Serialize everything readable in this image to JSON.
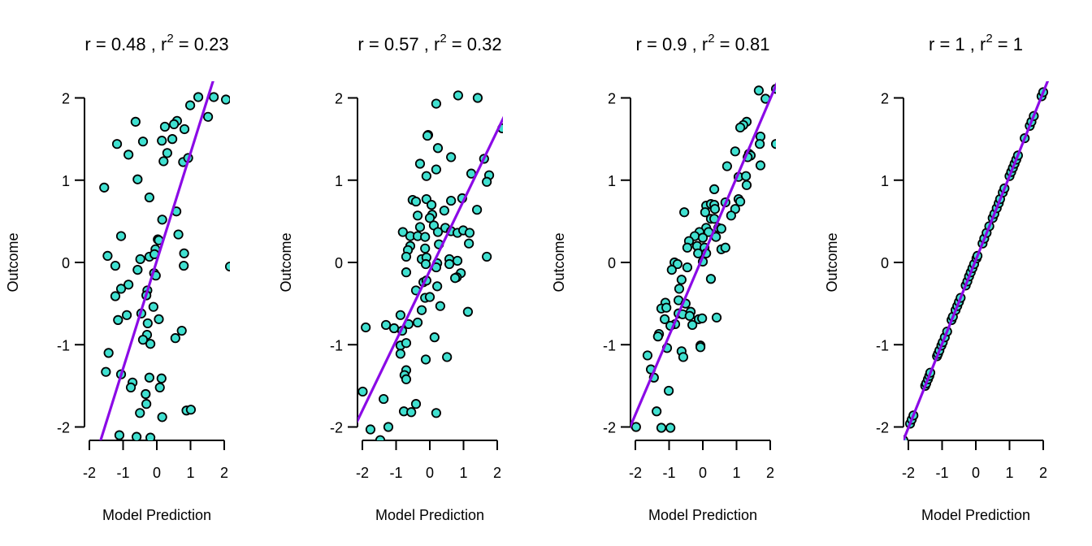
{
  "figure": {
    "point_fill": "#40E0D0",
    "point_stroke": "#000000",
    "line_color": "#8B0AE6"
  },
  "chart_data": [
    {
      "type": "scatter",
      "title": "r = 0.48 , r2 = 0.23",
      "title_parts": {
        "r_label": "r = ",
        "r": "0.48",
        "sep": " , r",
        "sup": "2",
        "eq": " = ",
        "r2": "0.23"
      },
      "xlabel": "Model Prediction",
      "ylabel": "Outcome",
      "xlim": [
        -2.2,
        2.15
      ],
      "ylim": [
        -2.2,
        2.2
      ],
      "xticks": [
        -2,
        -1,
        0,
        1,
        2
      ],
      "xtick_labels": [
        "-2",
        "-1",
        "0",
        "1",
        "2"
      ],
      "yticks": [
        -2,
        -1,
        0,
        1,
        2
      ],
      "ytick_labels": [
        "-2",
        "-1",
        "0",
        "1",
        "2"
      ],
      "grid": false,
      "fit_line": {
        "slope": 1.31,
        "intercept": 0.02
      },
      "points": [
        [
          2.05,
          1.98
        ],
        [
          1.69,
          2.01
        ],
        [
          1.23,
          2.01
        ],
        [
          0.99,
          1.91
        ],
        [
          1.52,
          1.77
        ],
        [
          -0.63,
          1.71
        ],
        [
          0.6,
          1.72
        ],
        [
          0.51,
          1.68
        ],
        [
          0.24,
          1.65
        ],
        [
          0.82,
          1.62
        ],
        [
          -1.18,
          1.44
        ],
        [
          -0.41,
          1.47
        ],
        [
          0.15,
          1.48
        ],
        [
          0.46,
          1.5
        ],
        [
          -0.84,
          1.31
        ],
        [
          0.31,
          1.33
        ],
        [
          0.2,
          1.23
        ],
        [
          0.78,
          1.22
        ],
        [
          0.93,
          1.27
        ],
        [
          -0.57,
          1.01
        ],
        [
          -1.56,
          0.91
        ],
        [
          -0.22,
          0.79
        ],
        [
          0.58,
          0.62
        ],
        [
          0.16,
          0.52
        ],
        [
          -1.06,
          0.32
        ],
        [
          0.64,
          0.34
        ],
        [
          0.03,
          0.28
        ],
        [
          0.06,
          0.27
        ],
        [
          -0.04,
          0.16
        ],
        [
          -1.46,
          0.08
        ],
        [
          -0.22,
          0.07
        ],
        [
          -0.49,
          0.04
        ],
        [
          -0.07,
          0.1
        ],
        [
          0.81,
          0.11
        ],
        [
          -1.23,
          -0.04
        ],
        [
          0.8,
          -0.04
        ],
        [
          -0.57,
          -0.09
        ],
        [
          -0.08,
          -0.13
        ],
        [
          -0.03,
          -0.16
        ],
        [
          2.17,
          -0.05
        ],
        [
          -0.84,
          -0.27
        ],
        [
          -1.06,
          -0.32
        ],
        [
          -1.23,
          -0.41
        ],
        [
          -0.28,
          -0.34
        ],
        [
          -0.31,
          -0.4
        ],
        [
          -0.1,
          -0.54
        ],
        [
          -0.89,
          -0.64
        ],
        [
          -1.15,
          -0.7
        ],
        [
          -0.46,
          -0.62
        ],
        [
          0.06,
          -0.69
        ],
        [
          -0.27,
          -0.74
        ],
        [
          -0.29,
          -0.88
        ],
        [
          -0.41,
          -0.94
        ],
        [
          -0.19,
          -0.99
        ],
        [
          0.74,
          -0.83
        ],
        [
          0.55,
          -0.92
        ],
        [
          -1.43,
          -1.1
        ],
        [
          -1.51,
          -1.33
        ],
        [
          -1.06,
          -1.36
        ],
        [
          -0.22,
          -1.4
        ],
        [
          0.14,
          -1.41
        ],
        [
          -0.72,
          -1.46
        ],
        [
          -0.77,
          -1.52
        ],
        [
          0.09,
          -1.52
        ],
        [
          -0.33,
          -1.6
        ],
        [
          -0.31,
          -1.72
        ],
        [
          -0.5,
          -1.83
        ],
        [
          0.16,
          -1.88
        ],
        [
          0.88,
          -1.8
        ],
        [
          1.01,
          -1.79
        ],
        [
          -1.11,
          -2.1
        ],
        [
          -0.6,
          -2.12
        ],
        [
          -0.19,
          -2.13
        ]
      ]
    },
    {
      "type": "scatter",
      "title": "r = 0.57 , r2 = 0.32",
      "title_parts": {
        "r_label": "r = ",
        "r": "0.57",
        "sep": " , r",
        "sup": "2",
        "eq": " = ",
        "r2": "0.32"
      },
      "xlabel": "Model Prediction",
      "ylabel": "Outcome",
      "xlim": [
        -2.2,
        2.15
      ],
      "ylim": [
        -2.2,
        2.2
      ],
      "xticks": [
        -2,
        -1,
        0,
        1,
        2
      ],
      "xtick_labels": [
        "-2",
        "-1",
        "0",
        "1",
        "2"
      ],
      "yticks": [
        -2,
        -1,
        0,
        1,
        2
      ],
      "ytick_labels": [
        "-2",
        "-1",
        "0",
        "1",
        "2"
      ],
      "grid": false,
      "fit_line": {
        "slope": 0.85,
        "intercept": -0.1
      },
      "points": [
        [
          0.84,
          2.03
        ],
        [
          1.42,
          2.0
        ],
        [
          0.19,
          1.93
        ],
        [
          -0.05,
          1.55
        ],
        [
          -0.07,
          1.54
        ],
        [
          0.24,
          1.39
        ],
        [
          0.63,
          1.28
        ],
        [
          1.61,
          1.26
        ],
        [
          -0.29,
          1.2
        ],
        [
          0.19,
          1.13
        ],
        [
          -0.1,
          1.05
        ],
        [
          1.23,
          1.08
        ],
        [
          1.76,
          1.06
        ],
        [
          1.69,
          0.98
        ],
        [
          -0.51,
          0.76
        ],
        [
          -0.41,
          0.74
        ],
        [
          -0.1,
          0.77
        ],
        [
          0.05,
          0.7
        ],
        [
          0.63,
          0.75
        ],
        [
          0.96,
          0.78
        ],
        [
          0.43,
          0.63
        ],
        [
          1.4,
          0.64
        ],
        [
          -0.36,
          0.57
        ],
        [
          0.07,
          0.58
        ],
        [
          0.0,
          0.54
        ],
        [
          0.12,
          0.45
        ],
        [
          -0.29,
          0.43
        ],
        [
          0.46,
          0.42
        ],
        [
          0.63,
          0.38
        ],
        [
          0.24,
          0.37
        ],
        [
          0.82,
          0.36
        ],
        [
          0.99,
          0.39
        ],
        [
          1.18,
          0.36
        ],
        [
          -0.8,
          0.37
        ],
        [
          -0.58,
          0.32
        ],
        [
          -0.36,
          0.32
        ],
        [
          -0.14,
          0.31
        ],
        [
          0.27,
          0.22
        ],
        [
          1.16,
          0.23
        ],
        [
          -0.58,
          0.2
        ],
        [
          -0.65,
          0.15
        ],
        [
          -0.14,
          0.17
        ],
        [
          -0.7,
          0.07
        ],
        [
          1.69,
          0.07
        ],
        [
          -0.24,
          0.04
        ],
        [
          -0.1,
          0.06
        ],
        [
          0.58,
          0.04
        ],
        [
          0.82,
          0.02
        ],
        [
          -0.12,
          -0.02
        ],
        [
          0.22,
          -0.01
        ],
        [
          0.58,
          -0.02
        ],
        [
          0.19,
          -0.06
        ],
        [
          -0.7,
          -0.12
        ],
        [
          0.92,
          -0.13
        ],
        [
          0.8,
          -0.18
        ],
        [
          0.75,
          -0.19
        ],
        [
          -0.19,
          -0.24
        ],
        [
          -0.1,
          -0.22
        ],
        [
          0.22,
          -0.29
        ],
        [
          -0.41,
          -0.34
        ],
        [
          -0.14,
          -0.43
        ],
        [
          0.0,
          -0.42
        ],
        [
          0.31,
          -0.53
        ],
        [
          -0.24,
          -0.58
        ],
        [
          1.13,
          -0.6
        ],
        [
          -0.87,
          -0.64
        ],
        [
          -0.36,
          -0.73
        ],
        [
          -0.63,
          -0.75
        ],
        [
          -1.3,
          -0.76
        ],
        [
          -1.06,
          -0.8
        ],
        [
          -0.82,
          -0.83
        ],
        [
          -1.9,
          -0.79
        ],
        [
          0.14,
          -0.91
        ],
        [
          -0.87,
          -1.01
        ],
        [
          -0.7,
          -0.98
        ],
        [
          -0.87,
          -1.11
        ],
        [
          -0.12,
          -1.18
        ],
        [
          0.51,
          -1.15
        ],
        [
          -0.7,
          -1.31
        ],
        [
          -0.75,
          -1.37
        ],
        [
          -0.7,
          -1.42
        ],
        [
          -1.99,
          -1.57
        ],
        [
          -1.37,
          -1.66
        ],
        [
          -0.41,
          -1.72
        ],
        [
          -0.77,
          -1.81
        ],
        [
          -0.55,
          -1.82
        ],
        [
          0.19,
          -1.83
        ],
        [
          -1.76,
          -2.03
        ],
        [
          -1.23,
          -2.0
        ],
        [
          -1.47,
          -2.16
        ],
        [
          2.15,
          1.63
        ]
      ]
    },
    {
      "type": "scatter",
      "title": "r = 0.9 , r2 = 0.81",
      "title_parts": {
        "r_label": "r = ",
        "r": "0.9",
        "sep": " , r",
        "sup": "2",
        "eq": " = ",
        "r2": "0.81"
      },
      "xlabel": "Model Prediction",
      "ylabel": "Outcome",
      "xlim": [
        -2.2,
        2.15
      ],
      "ylim": [
        -2.2,
        2.2
      ],
      "xticks": [
        -2,
        -1,
        0,
        1,
        2
      ],
      "xtick_labels": [
        "-2",
        "-1",
        "0",
        "1",
        "2"
      ],
      "yticks": [
        -2,
        -1,
        0,
        1,
        2
      ],
      "ytick_labels": [
        "-2",
        "-1",
        "0",
        "1",
        "2"
      ],
      "grid": false,
      "fit_line": {
        "slope": 0.96,
        "intercept": 0.07
      },
      "points": [
        [
          1.66,
          2.09
        ],
        [
          1.86,
          1.99
        ],
        [
          2.17,
          2.11
        ],
        [
          1.3,
          1.71
        ],
        [
          1.2,
          1.67
        ],
        [
          1.11,
          1.64
        ],
        [
          1.71,
          1.53
        ],
        [
          1.69,
          1.44
        ],
        [
          2.17,
          1.44
        ],
        [
          0.96,
          1.35
        ],
        [
          1.37,
          1.32
        ],
        [
          1.42,
          1.3
        ],
        [
          1.33,
          1.28
        ],
        [
          0.72,
          1.17
        ],
        [
          1.71,
          1.18
        ],
        [
          1.06,
          1.04
        ],
        [
          1.28,
          1.05
        ],
        [
          1.3,
          0.94
        ],
        [
          0.34,
          0.89
        ],
        [
          0.67,
          0.73
        ],
        [
          1.06,
          0.77
        ],
        [
          1.11,
          0.74
        ],
        [
          0.1,
          0.69
        ],
        [
          0.24,
          0.71
        ],
        [
          0.34,
          0.7
        ],
        [
          0.36,
          0.65
        ],
        [
          0.07,
          0.61
        ],
        [
          -0.55,
          0.61
        ],
        [
          0.96,
          0.65
        ],
        [
          0.84,
          0.57
        ],
        [
          0.24,
          0.53
        ],
        [
          0.34,
          0.53
        ],
        [
          0.1,
          0.42
        ],
        [
          0.46,
          0.42
        ],
        [
          0.55,
          0.41
        ],
        [
          -0.1,
          0.37
        ],
        [
          0.17,
          0.37
        ],
        [
          -0.24,
          0.32
        ],
        [
          0.0,
          0.3
        ],
        [
          0.39,
          0.31
        ],
        [
          -0.41,
          0.26
        ],
        [
          -0.46,
          0.18
        ],
        [
          -0.17,
          0.2
        ],
        [
          0.05,
          0.18
        ],
        [
          -0.14,
          0.11
        ],
        [
          0.1,
          0.11
        ],
        [
          0.55,
          0.16
        ],
        [
          0.67,
          0.18
        ],
        [
          0.0,
          0.01
        ],
        [
          -0.84,
          0.0
        ],
        [
          -0.75,
          -0.02
        ],
        [
          -0.92,
          -0.09
        ],
        [
          -0.46,
          -0.06
        ],
        [
          -0.63,
          -0.21
        ],
        [
          0.24,
          -0.2
        ],
        [
          -0.7,
          -0.32
        ],
        [
          -0.72,
          -0.46
        ],
        [
          -0.51,
          -0.5
        ],
        [
          -1.11,
          -0.49
        ],
        [
          -1.23,
          -0.56
        ],
        [
          -1.08,
          -0.55
        ],
        [
          -0.72,
          -0.62
        ],
        [
          -0.6,
          -0.63
        ],
        [
          -0.36,
          -0.6
        ],
        [
          -0.39,
          -0.65
        ],
        [
          -1.13,
          -0.69
        ],
        [
          -0.12,
          -0.69
        ],
        [
          -0.02,
          -0.68
        ],
        [
          0.41,
          -0.67
        ],
        [
          -0.82,
          -0.75
        ],
        [
          -0.31,
          -0.76
        ],
        [
          -0.96,
          -0.77
        ],
        [
          -1.3,
          -0.87
        ],
        [
          -1.33,
          -0.9
        ],
        [
          -0.07,
          -1.01
        ],
        [
          -0.07,
          -1.03
        ],
        [
          -1.06,
          -1.04
        ],
        [
          -0.63,
          -1.08
        ],
        [
          -0.58,
          -1.15
        ],
        [
          -1.64,
          -1.13
        ],
        [
          -1.54,
          -1.3
        ],
        [
          -1.45,
          -1.4
        ],
        [
          -1.01,
          -1.56
        ],
        [
          -1.37,
          -1.81
        ],
        [
          -1.98,
          -2.0
        ],
        [
          -1.23,
          -2.01
        ],
        [
          -0.96,
          -2.01
        ]
      ]
    },
    {
      "type": "scatter",
      "title": "r = 1 , r2 = 1",
      "title_parts": {
        "r_label": "r = ",
        "r": "1",
        "sep": " , r",
        "sup": "2",
        "eq": " = ",
        "r2": "1"
      },
      "xlabel": "Model Prediction",
      "ylabel": "Outcome",
      "xlim": [
        -2.2,
        2.15
      ],
      "ylim": [
        -2.2,
        2.2
      ],
      "xticks": [
        -2,
        -1,
        0,
        1,
        2
      ],
      "xtick_labels": [
        "-2",
        "-1",
        "0",
        "1",
        "2"
      ],
      "yticks": [
        -2,
        -1,
        0,
        1,
        2
      ],
      "ytick_labels": [
        "-2",
        "-1",
        "0",
        "1",
        "2"
      ],
      "grid": false,
      "fit_line": {
        "slope": 1.02,
        "intercept": 0.03
      },
      "points": [
        [
          -2.15,
          -2.16
        ],
        [
          -1.95,
          -1.96
        ],
        [
          -1.9,
          -1.91
        ],
        [
          -1.85,
          -1.86
        ],
        [
          -1.5,
          -1.5
        ],
        [
          -1.47,
          -1.47
        ],
        [
          -1.42,
          -1.42
        ],
        [
          -1.38,
          -1.38
        ],
        [
          -1.35,
          -1.34
        ],
        [
          -1.15,
          -1.14
        ],
        [
          -1.12,
          -1.11
        ],
        [
          -1.08,
          -1.07
        ],
        [
          -1.02,
          -1.01
        ],
        [
          -0.98,
          -0.97
        ],
        [
          -0.92,
          -0.91
        ],
        [
          -0.85,
          -0.84
        ],
        [
          -0.72,
          -0.7
        ],
        [
          -0.68,
          -0.66
        ],
        [
          -0.6,
          -0.58
        ],
        [
          -0.55,
          -0.53
        ],
        [
          -0.5,
          -0.48
        ],
        [
          -0.45,
          -0.43
        ],
        [
          -0.3,
          -0.28
        ],
        [
          -0.25,
          -0.23
        ],
        [
          -0.2,
          -0.17
        ],
        [
          -0.15,
          -0.12
        ],
        [
          -0.1,
          -0.07
        ],
        [
          -0.05,
          -0.02
        ],
        [
          0.02,
          0.05
        ],
        [
          0.05,
          0.08
        ],
        [
          0.2,
          0.23
        ],
        [
          0.25,
          0.29
        ],
        [
          0.32,
          0.36
        ],
        [
          0.4,
          0.44
        ],
        [
          0.5,
          0.54
        ],
        [
          0.55,
          0.59
        ],
        [
          0.62,
          0.66
        ],
        [
          0.68,
          0.72
        ],
        [
          0.72,
          0.77
        ],
        [
          0.8,
          0.85
        ],
        [
          0.85,
          0.9
        ],
        [
          1.0,
          1.05
        ],
        [
          1.05,
          1.1
        ],
        [
          1.1,
          1.15
        ],
        [
          1.15,
          1.2
        ],
        [
          1.2,
          1.25
        ],
        [
          1.25,
          1.3
        ],
        [
          1.45,
          1.51
        ],
        [
          1.6,
          1.66
        ],
        [
          1.65,
          1.71
        ],
        [
          1.72,
          1.78
        ],
        [
          1.95,
          2.02
        ],
        [
          2.0,
          2.07
        ]
      ]
    }
  ]
}
